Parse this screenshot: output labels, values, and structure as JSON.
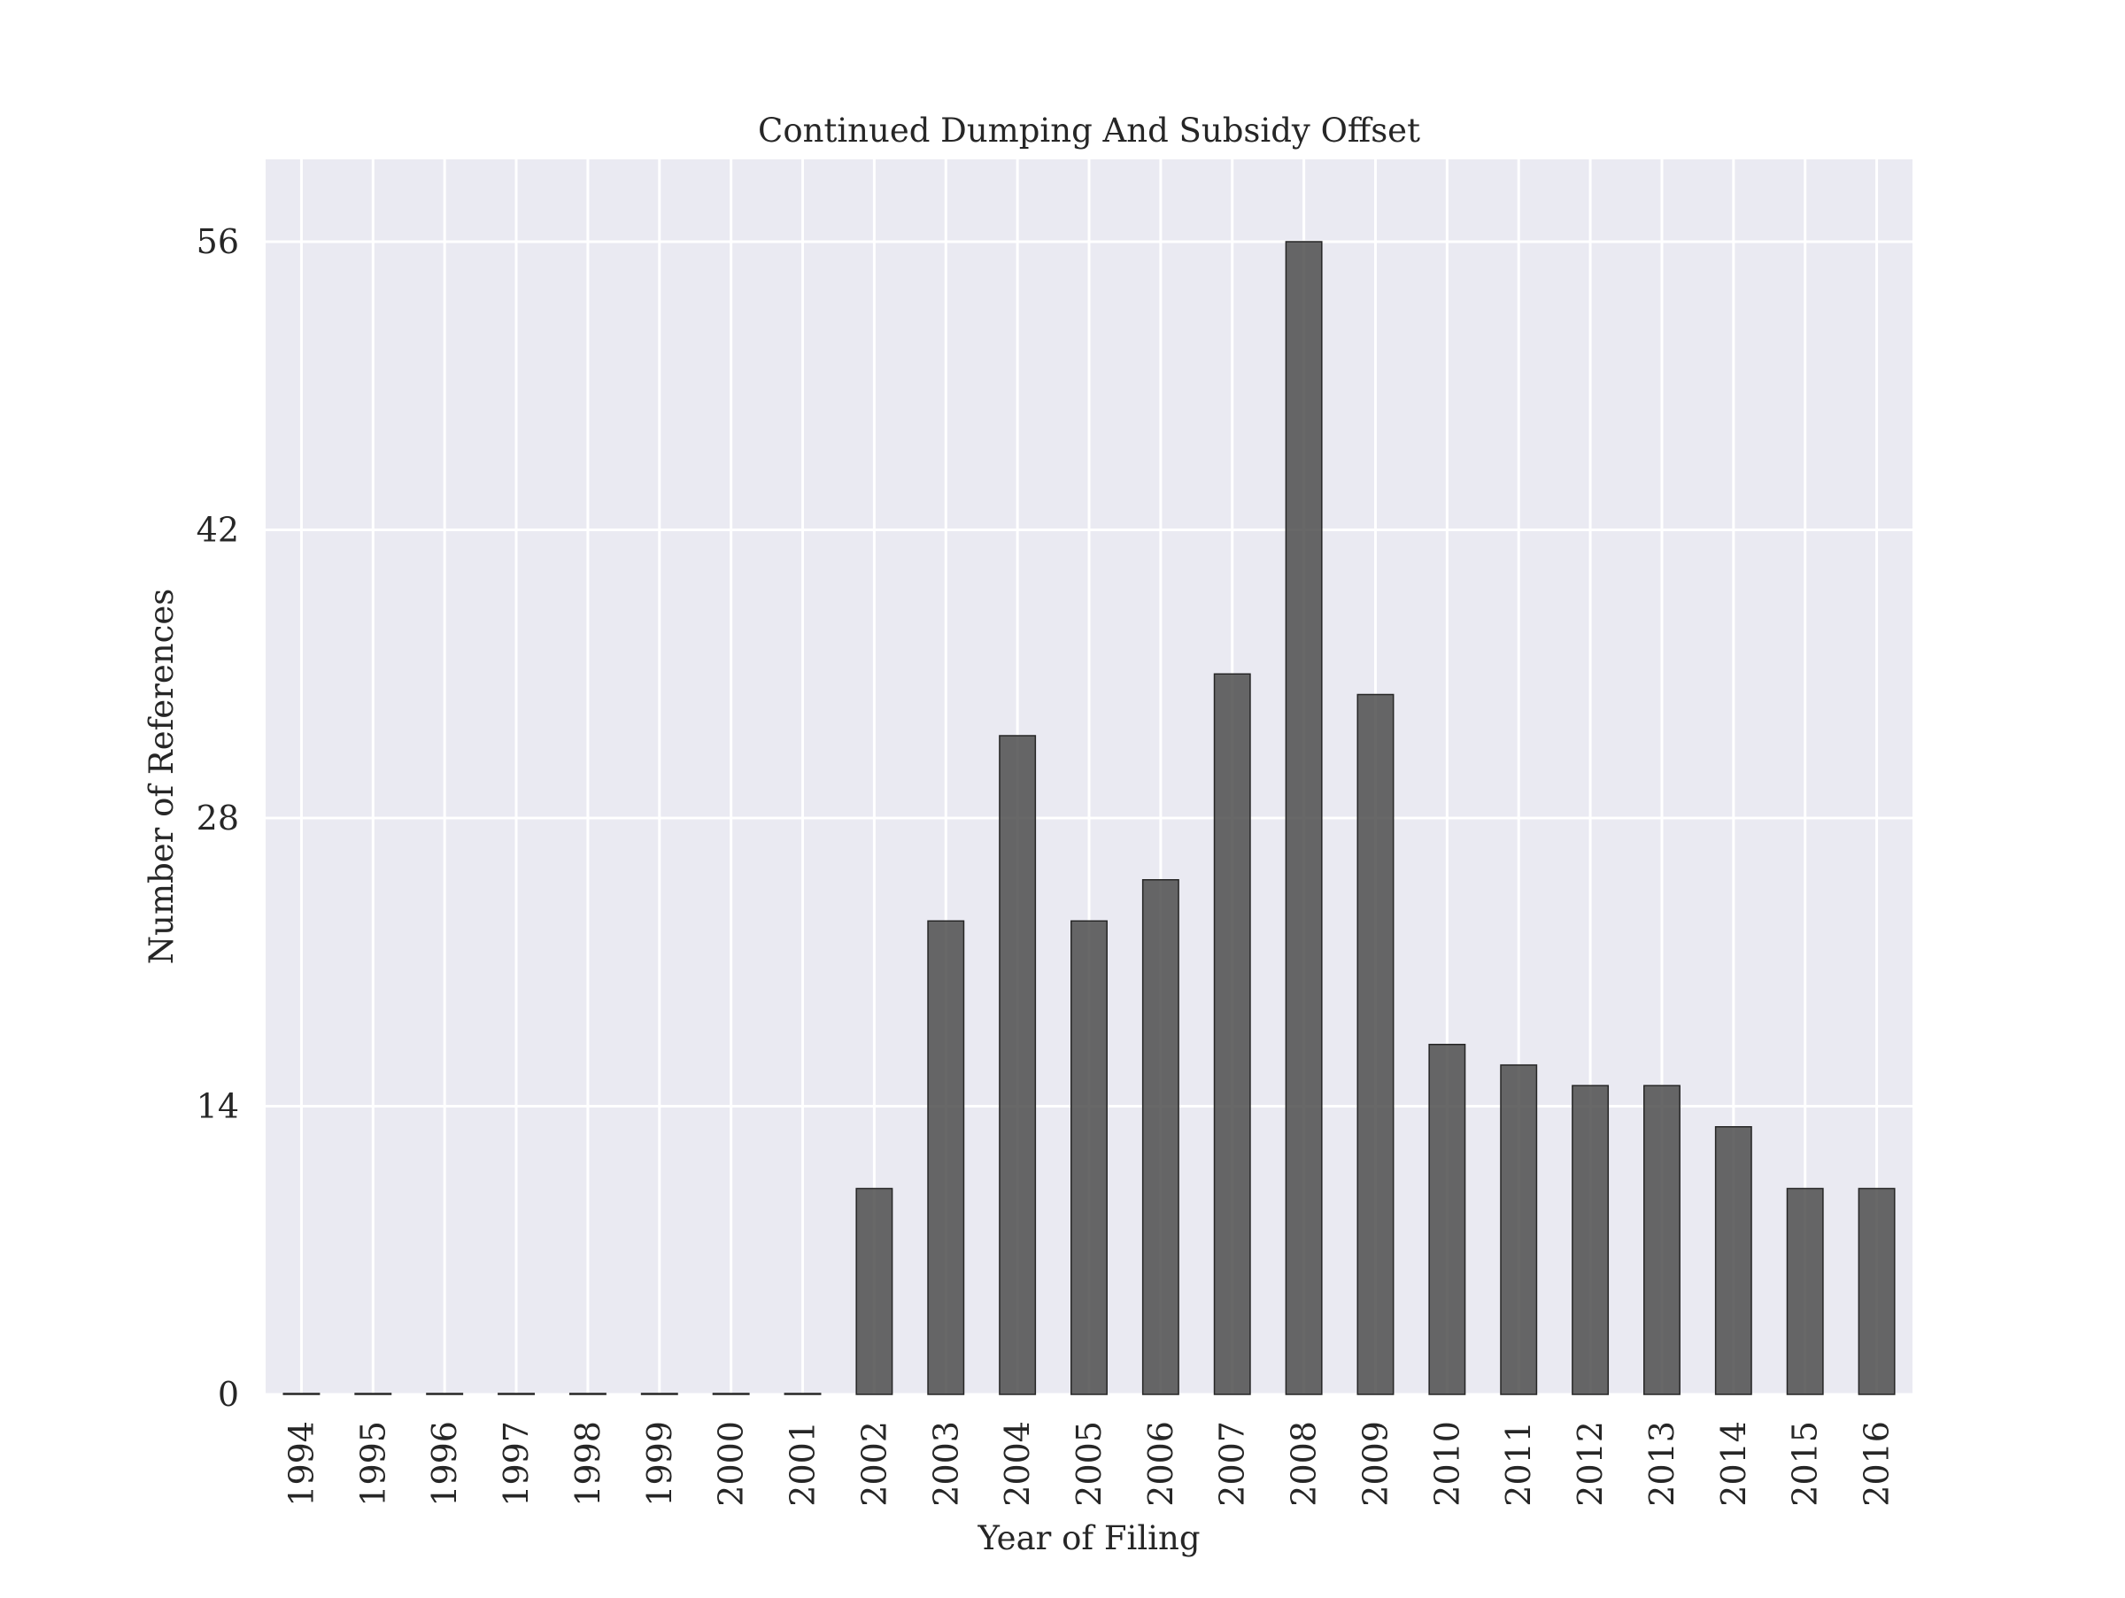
{
  "chart_data": {
    "type": "bar",
    "title": "Continued Dumping And Subsidy Offset",
    "xlabel": "Year of Filing",
    "ylabel": "Number of References",
    "categories": [
      "1994",
      "1995",
      "1996",
      "1997",
      "1998",
      "1999",
      "2000",
      "2001",
      "2002",
      "2003",
      "2004",
      "2005",
      "2006",
      "2007",
      "2008",
      "2009",
      "2010",
      "2011",
      "2012",
      "2013",
      "2014",
      "2015",
      "2016"
    ],
    "values": [
      0,
      0,
      0,
      0,
      0,
      0,
      0,
      0,
      10,
      23,
      32,
      23,
      25,
      35,
      56,
      34,
      17,
      16,
      15,
      15,
      13,
      10,
      10
    ],
    "ylim": [
      0,
      60
    ],
    "yticks": [
      0,
      14,
      28,
      42,
      56
    ],
    "grid": true,
    "bar_color": "#4d4d4d",
    "background_color": "#EAEAF2"
  }
}
